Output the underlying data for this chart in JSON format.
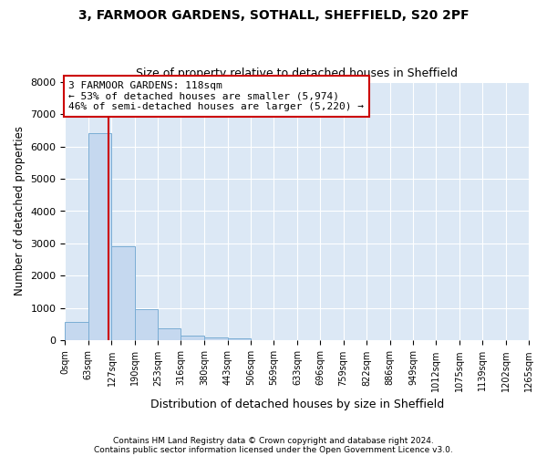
{
  "title1": "3, FARMOOR GARDENS, SOTHALL, SHEFFIELD, S20 2PF",
  "title2": "Size of property relative to detached houses in Sheffield",
  "xlabel": "Distribution of detached houses by size in Sheffield",
  "ylabel": "Number of detached properties",
  "footer1": "Contains HM Land Registry data © Crown copyright and database right 2024.",
  "footer2": "Contains public sector information licensed under the Open Government Licence v3.0.",
  "bin_edges": [
    0,
    63,
    127,
    190,
    253,
    316,
    380,
    443,
    506,
    569,
    633,
    696,
    759,
    822,
    886,
    949,
    1012,
    1075,
    1139,
    1202,
    1265
  ],
  "bin_labels": [
    "0sqm",
    "63sqm",
    "127sqm",
    "190sqm",
    "253sqm",
    "316sqm",
    "380sqm",
    "443sqm",
    "506sqm",
    "569sqm",
    "633sqm",
    "696sqm",
    "759sqm",
    "822sqm",
    "886sqm",
    "949sqm",
    "1012sqm",
    "1075sqm",
    "1139sqm",
    "1202sqm",
    "1265sqm"
  ],
  "bar_heights": [
    570,
    6400,
    2920,
    970,
    380,
    160,
    100,
    65,
    15,
    5,
    3,
    2,
    1,
    1,
    0,
    0,
    0,
    0,
    0,
    0
  ],
  "bar_color": "#c5d8ef",
  "bar_edge_color": "#7aadd4",
  "property_size": 118,
  "vline_color": "#cc0000",
  "annotation_text": "3 FARMOOR GARDENS: 118sqm\n← 53% of detached houses are smaller (5,974)\n46% of semi-detached houses are larger (5,220) →",
  "annotation_box_color": "#ffffff",
  "annotation_box_edge": "#cc0000",
  "ylim": [
    0,
    8000
  ],
  "yticks": [
    0,
    1000,
    2000,
    3000,
    4000,
    5000,
    6000,
    7000,
    8000
  ],
  "bg_color": "#ffffff",
  "plot_bg_color": "#dce8f5"
}
